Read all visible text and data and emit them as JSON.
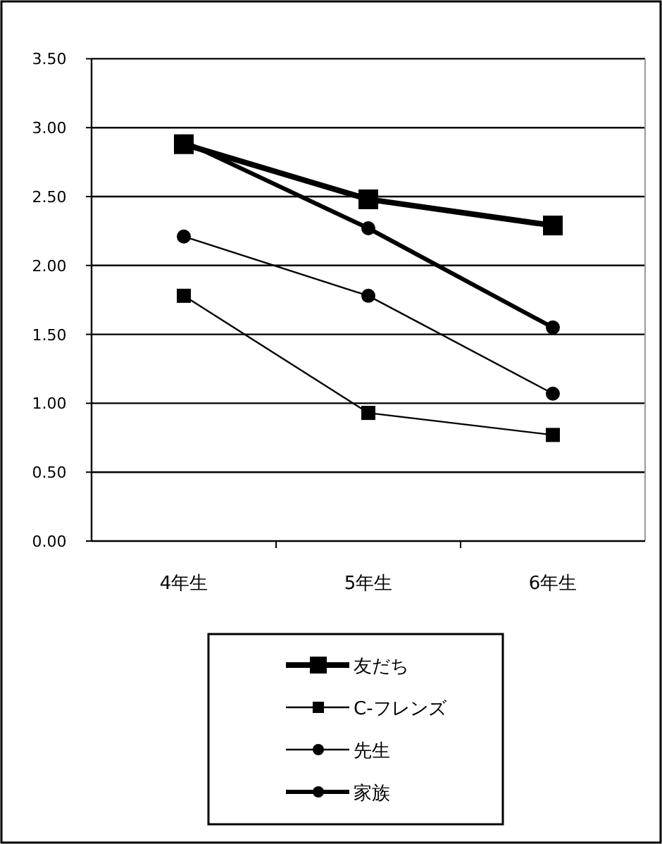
{
  "chart_data": {
    "type": "line",
    "categories": [
      "4年生",
      "5年生",
      "6年生"
    ],
    "series": [
      {
        "name": "友だち",
        "color": "#000000",
        "marker": "square",
        "values": [
          2.88,
          2.48,
          2.29
        ]
      },
      {
        "name": "C-フレンズ",
        "color": "#000000",
        "marker": "square",
        "values": [
          1.78,
          0.93,
          0.77
        ]
      },
      {
        "name": "先生",
        "color": "#000000",
        "marker": "circle",
        "values": [
          2.21,
          1.78,
          1.07
        ]
      },
      {
        "name": "家族",
        "color": "#000000",
        "marker": "circle",
        "values": [
          2.9,
          2.27,
          1.55
        ]
      }
    ],
    "ylim": [
      0,
      3.5
    ],
    "yticks": [
      {
        "value": 0,
        "label": "0.00"
      },
      {
        "value": 0.5,
        "label": "0.50"
      },
      {
        "value": 1,
        "label": "1.00"
      },
      {
        "value": 1.5,
        "label": "1.50"
      },
      {
        "value": 2,
        "label": "2.00"
      },
      {
        "value": 2.5,
        "label": "2.50"
      },
      {
        "value": 3,
        "label": "3.00"
      },
      {
        "value": 3.5,
        "label": "3.50"
      }
    ],
    "grid": "y",
    "legend": "bottom",
    "line_style": "solid"
  }
}
